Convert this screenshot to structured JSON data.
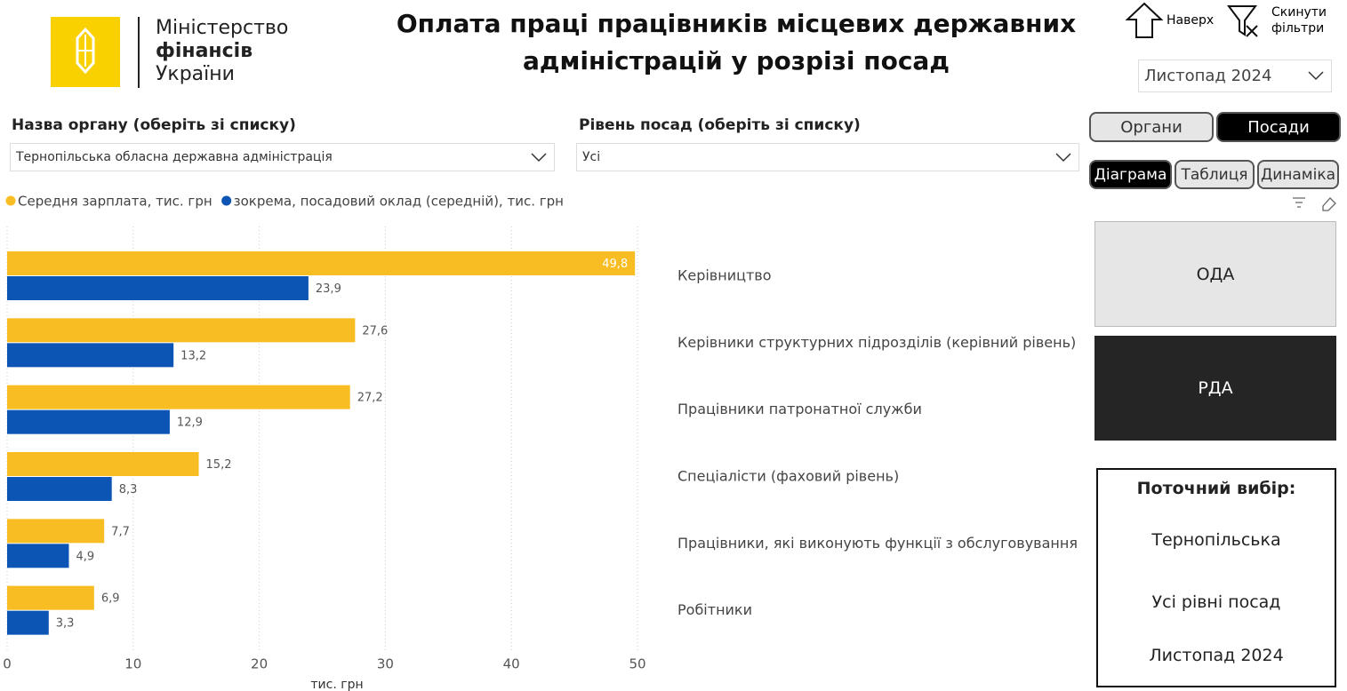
{
  "header": {
    "logo_lines": [
      "Міністерство",
      "фінансів",
      "України"
    ],
    "title_lines": [
      "Оплата праці працівників місцевих державних",
      "адміністрацій у розрізі посад"
    ],
    "up": "Наверх",
    "reset_lines": [
      "Скинути",
      "фільтри"
    ],
    "period": "Листопад 2024"
  },
  "filters": {
    "organ_label": "Назва органу (оберіть зі списку)",
    "organ_value": "Тернопільська обласна державна адміністрація",
    "level_label": "Рівень посад (оберіть зі списку)",
    "level_value": "Усі"
  },
  "nav": {
    "tabs": [
      "Органи",
      "Посади"
    ],
    "views": [
      "Діаграма",
      "Таблиця",
      "Динаміка"
    ],
    "buttons": [
      "ОДА",
      "РДА"
    ]
  },
  "selection": {
    "title": "Поточний вибір:",
    "items": [
      "Тернопільська",
      "Усі рівні посад",
      "Листопад 2024"
    ]
  },
  "chart_data": {
    "type": "hbar",
    "categories": [
      "Керівництво",
      "Керівники структурних підрозділів (керівний рівень)",
      "Працівники патронатної служби",
      "Спеціалісти (фаховий рівень)",
      "Працівники, які виконують функції з обслуговування",
      "Робітники"
    ],
    "series": [
      {
        "name": "Середня зарплата, тис. грн",
        "color": "#f9bd24",
        "values": [
          49.8,
          27.6,
          27.2,
          15.2,
          7.7,
          6.9
        ],
        "value_labels": [
          "49,8",
          "27,6",
          "27,2",
          "15,2",
          "7,7",
          "6,9"
        ]
      },
      {
        "name": "зокрема, посадовий оклад (середній), тис. грн",
        "color": "#0c55b4",
        "values": [
          23.9,
          13.2,
          12.9,
          8.3,
          4.9,
          3.3
        ],
        "value_labels": [
          "23,9",
          "13,2",
          "12,9",
          "8,3",
          "4,9",
          "3,3"
        ]
      }
    ],
    "xlim": [
      0,
      50
    ],
    "xticks": [
      0,
      10,
      20,
      30,
      40,
      50
    ],
    "xlabel": "тис. грн",
    "grid": true
  }
}
